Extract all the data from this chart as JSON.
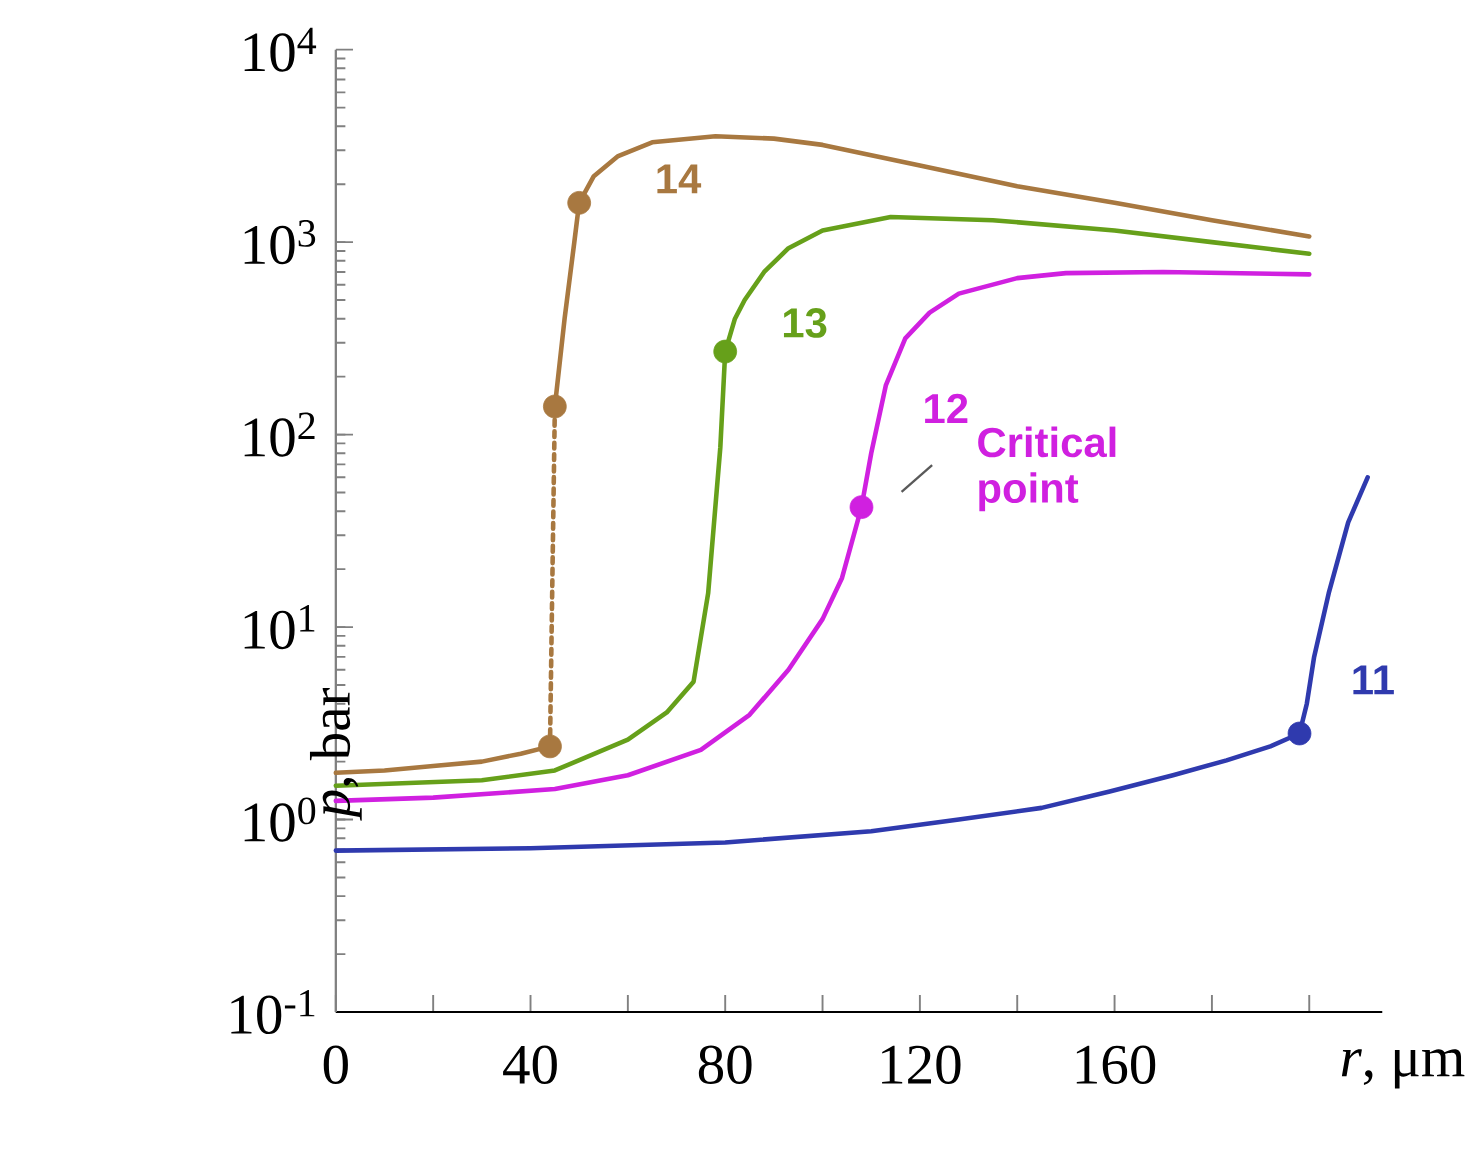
{
  "chart_data": {
    "type": "line",
    "xlabel": "*r*, μm",
    "ylabel": "*p*, bar",
    "log": "y",
    "xlim": [
      0,
      215
    ],
    "ylim": [
      0.1,
      10000
    ],
    "xticks": [
      0,
      {
        "value": 20,
        "label": null
      },
      40,
      {
        "value": 60,
        "label": null
      },
      80,
      {
        "value": 100,
        "label": null
      },
      120,
      {
        "value": 140,
        "label": null
      },
      160,
      {
        "value": 180,
        "label": null
      },
      {
        "value": 200,
        "label": null
      }
    ],
    "yticks": [
      {
        "value": 0.1,
        "label": "10$^{-1}$"
      },
      {
        "value": 1,
        "label": "10$^{0}$"
      },
      {
        "value": 10,
        "label": "10$^{1}$"
      },
      {
        "value": 100,
        "label": "10$^{2}$"
      },
      {
        "value": 1000,
        "label": "10$^{3}$"
      },
      {
        "value": 10000,
        "label": "10$^{4}$"
      }
    ],
    "series": [
      {
        "color": "#a87840",
        "line_style": "solid",
        "x": [
          0,
          10,
          20,
          30,
          38,
          44
        ],
        "values": [
          1.75,
          1.8,
          1.9,
          2.0,
          2.2,
          2.4
        ]
      },
      {
        "color": "#a87840",
        "line_style": "dotted",
        "x": [
          44,
          45
        ],
        "values": [
          2.4,
          140
        ]
      },
      {
        "color": "#a87840",
        "line_style": "solid",
        "x": [
          45,
          47,
          49,
          50
        ],
        "values": [
          140,
          400,
          1000,
          1600
        ]
      },
      {
        "name": "14",
        "color": "#a87840",
        "line_style": "solid",
        "x": [
          50,
          53,
          58,
          65,
          78,
          90,
          100,
          120,
          140,
          160,
          180,
          200
        ],
        "values": [
          1600,
          2200,
          2800,
          3300,
          3550,
          3450,
          3200,
          2500,
          1950,
          1600,
          1300,
          1070
        ]
      },
      {
        "color": "#66a01a",
        "line_style": "solid",
        "x": [
          0,
          15,
          30,
          45,
          60,
          68,
          73.5,
          76.5,
          79,
          80
        ],
        "values": [
          1.5,
          1.55,
          1.6,
          1.8,
          2.6,
          3.6,
          5.2,
          15,
          86,
          270
        ]
      },
      {
        "name": "13",
        "color": "#66a01a",
        "line_style": "solid",
        "x": [
          80,
          82,
          84,
          88,
          93,
          100,
          114,
          135,
          160,
          180,
          200
        ],
        "values": [
          270,
          400,
          500,
          700,
          930,
          1150,
          1350,
          1300,
          1150,
          1000,
          870
        ]
      },
      {
        "color": "#d020e0",
        "line_style": "solid",
        "x": [
          0,
          20,
          45,
          60,
          75,
          85,
          93,
          100,
          104,
          108
        ],
        "values": [
          1.25,
          1.3,
          1.44,
          1.7,
          2.3,
          3.5,
          6,
          11,
          18,
          42
        ]
      },
      {
        "name": "12",
        "color": "#d020e0",
        "line_style": "solid",
        "x": [
          108,
          110,
          113,
          117,
          122,
          128,
          140,
          150,
          170,
          200
        ],
        "values": [
          42,
          80,
          180,
          316,
          430,
          540,
          650,
          690,
          700,
          680
        ]
      },
      {
        "color": "#2f3aae",
        "line_style": "solid",
        "x": [
          0,
          40,
          80,
          110,
          128,
          145,
          159,
          172,
          183,
          192,
          198
        ],
        "values": [
          0.69,
          0.71,
          0.76,
          0.87,
          1.0,
          1.15,
          1.4,
          1.7,
          2.03,
          2.4,
          2.8
        ]
      },
      {
        "name": "11",
        "color": "#2f3aae",
        "line_style": "solid",
        "x": [
          198,
          199.5,
          201,
          204,
          208,
          212
        ],
        "values": [
          2.8,
          4,
          7,
          15,
          35,
          60
        ]
      },
      {
        "type": "scatter",
        "marker": "circle",
        "color": "#a87840",
        "x": [
          44,
          45,
          50
        ],
        "values": [
          2.4,
          140,
          1600
        ]
      },
      {
        "type": "scatter",
        "marker": "circle",
        "color": "#66a01a",
        "x": [
          80
        ],
        "values": [
          270
        ]
      },
      {
        "type": "scatter",
        "marker": "circle",
        "color": "#d020e0",
        "x": [
          108
        ],
        "values": [
          42
        ]
      },
      {
        "type": "scatter",
        "marker": "circle",
        "color": "#2f3aae",
        "x": [
          198
        ],
        "values": [
          2.8
        ]
      }
    ],
    "annotations": [
      {
        "text": "Critical point",
        "x": 108,
        "y": 42
      }
    ]
  }
}
